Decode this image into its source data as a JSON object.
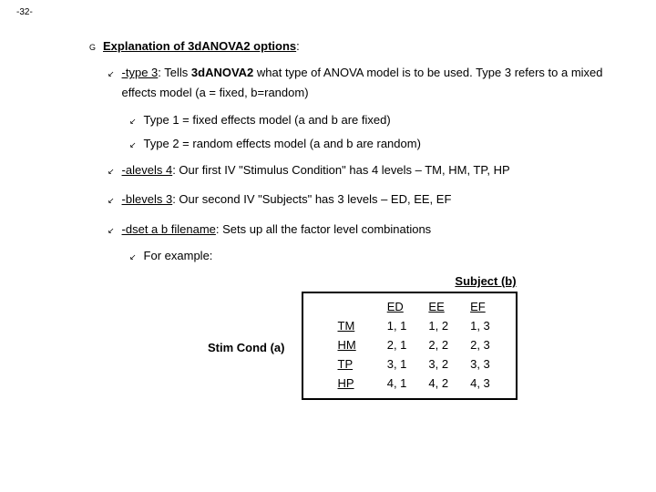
{
  "page_number": "-32-",
  "heading": "Explanation of 3dANOVA2 options",
  "bullets": {
    "lvl1_glyph": "G",
    "lvl2_glyph": "↙",
    "lvl3_glyph": "↙"
  },
  "type3": {
    "opt": "-type 3",
    "rest": ": Tells ",
    "bold1": "3dANOVA2",
    "tail": " what type of ANOVA model is to be used.  Type 3 refers to a mixed effects model (a = fixed, b=random)"
  },
  "type1": "Type 1 = fixed effects model (a and b are fixed)",
  "type2": "Type 2 = random effects model (a and b are random)",
  "alevels": {
    "opt": "-alevels 4",
    "tail": ": Our first IV \"Stimulus Condition\" has 4 levels – TM, HM, TP, HP"
  },
  "blevels": {
    "opt": "-blevels 3",
    "tail": ": Our second IV \"Subjects\" has 3 levels – ED, EE, EF"
  },
  "dset": {
    "opt": "-dset a b filename",
    "tail": ": Sets up all the factor level combinations"
  },
  "for_example": "For example:",
  "table": {
    "subject_title": "Subject (b)",
    "row_axis_title": "Stim Cond (a)",
    "col_headers": [
      "ED",
      "EE",
      "EF"
    ],
    "row_headers": [
      "TM",
      "HM",
      "TP",
      "HP"
    ],
    "cells": [
      [
        "1, 1",
        "1, 2",
        "1, 3"
      ],
      [
        "2, 1",
        "2, 2",
        "2, 3"
      ],
      [
        "3, 1",
        "3, 2",
        "3, 3"
      ],
      [
        "4, 1",
        "4, 2",
        "4, 3"
      ]
    ]
  }
}
